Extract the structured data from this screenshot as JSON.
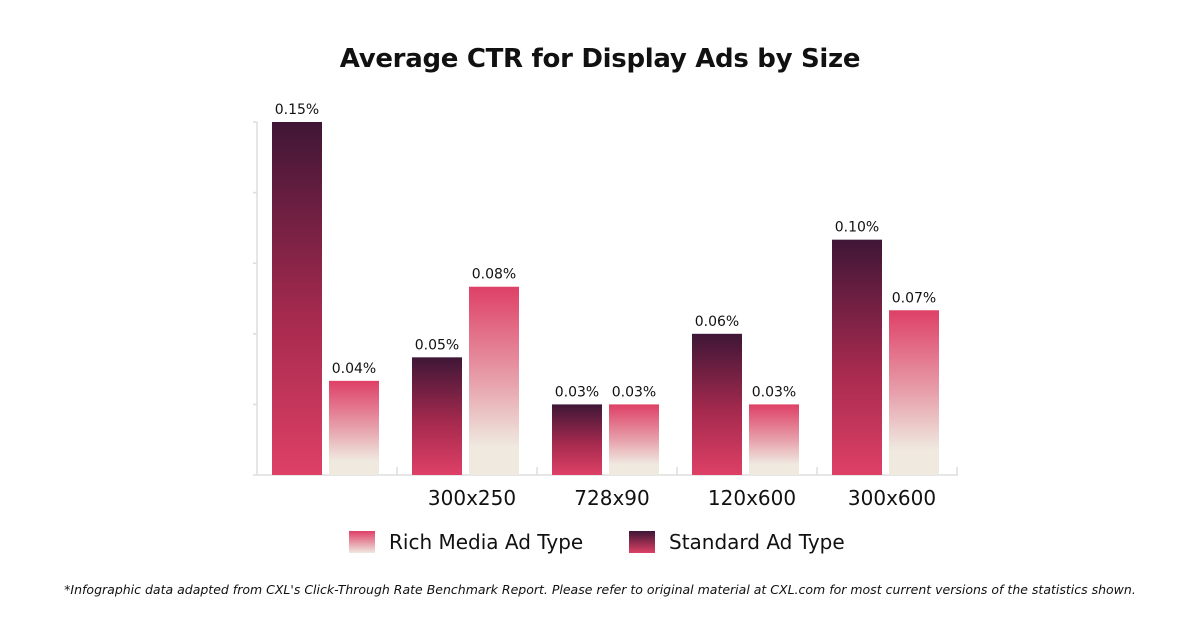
{
  "chart_data": {
    "type": "bar",
    "title": "Average CTR for Display Ads by Size",
    "categories": [
      "",
      "300x250",
      "728x90",
      "120x600",
      "300x600"
    ],
    "series": [
      {
        "name": "Standard Ad Type",
        "values": [
          0.15,
          0.05,
          0.03,
          0.06,
          0.1
        ],
        "labels": [
          "0.15%",
          "0.05%",
          "0.03%",
          "0.06%",
          "0.10%"
        ],
        "color_top": "#3f1636",
        "color_bottom": "#de4066"
      },
      {
        "name": "Rich Media Ad Type",
        "values": [
          0.04,
          0.08,
          0.03,
          0.03,
          0.07
        ],
        "labels": [
          "0.04%",
          "0.08%",
          "0.03%",
          "0.03%",
          "0.07%"
        ],
        "color_top": "#de4066",
        "color_bottom": "#efe9e0"
      }
    ],
    "ylim": [
      0,
      0.15
    ],
    "grid": false,
    "legend": "bottom",
    "footnote": "*Infographic data adapted from CXL's Click-Through Rate Benchmark Report. Please refer to original material at CXL.com for most current versions of the statistics shown."
  }
}
